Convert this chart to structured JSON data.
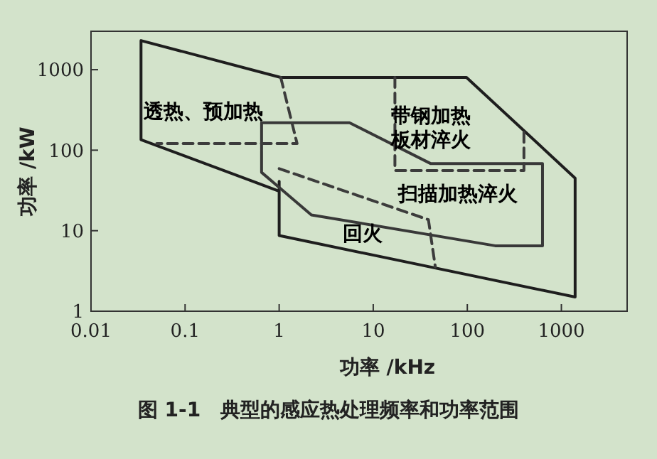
{
  "chart_data": {
    "type": "line",
    "title": "图 1-1　典型的感应热处理频率和功率范围",
    "xlabel": "功率 /kHz",
    "ylabel": "功率 /kW",
    "log": "xy",
    "grid": false,
    "marker": "none",
    "xlim": [
      0.01,
      5000
    ],
    "ylim": [
      1,
      3000
    ],
    "xticks": [
      0.01,
      0.1,
      1,
      10,
      100,
      1000
    ],
    "yticks": [
      1,
      10,
      100,
      1000
    ],
    "series": [
      {
        "color": "#1e1e1e",
        "line_style": "solid",
        "x": [
          1.0,
          0.034,
          0.034,
          1.04,
          98,
          1400,
          1400,
          1.0,
          1.0
        ],
        "values": [
          31,
          135,
          2300,
          800,
          800,
          45,
          1.5,
          8.7,
          41
        ]
      },
      {
        "color": "#383838",
        "line_style": "solid",
        "x": [
          0.65,
          0.65,
          5.6,
          41,
          630,
          630,
          198,
          2.2,
          0.65,
          0.65
        ],
        "values": [
          100,
          219,
          219,
          68,
          68,
          6.5,
          6.5,
          15.7,
          53,
          98
        ]
      },
      {
        "color": "#3c3c3c",
        "line_style": "dashed",
        "x": [
          1.04,
          1.55,
          0.05,
          null,
          17,
          17,
          400,
          400,
          null,
          1.0,
          38.6,
          45.7
        ],
        "values": [
          800,
          121,
          121,
          null,
          800,
          56,
          56,
          170,
          null,
          59,
          13.7,
          3.55
        ]
      }
    ],
    "annotations": [
      "透热、预加热",
      "带钢加热板材淬火",
      "扫描加热淬火",
      "回火"
    ]
  }
}
